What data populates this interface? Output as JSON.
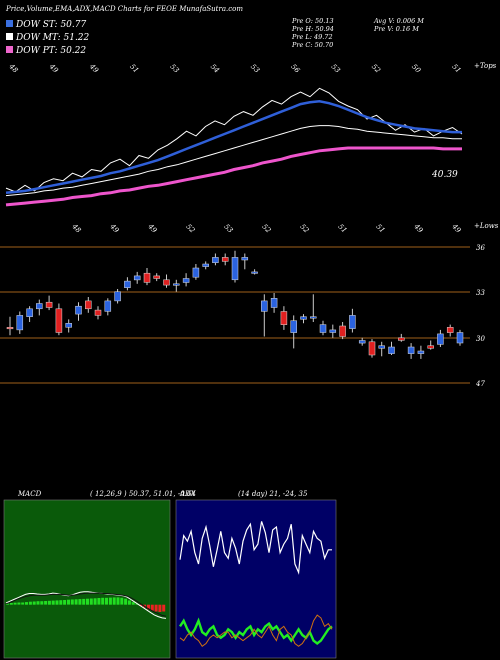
{
  "header": {
    "title": "Price,Volume,EMA,ADX,MACD Charts for FEOE MunafaSutra.com",
    "legend": [
      {
        "label": "DOW ST: 50.77",
        "color": "#3a6fe0"
      },
      {
        "label": "DOW MT: 51.22",
        "color": "#ffffff"
      },
      {
        "label": "DOW PT: 50.22",
        "color": "#ee66cc"
      }
    ],
    "stats_col1": [
      "Pre O: 50.13",
      "Pre H: 50.94",
      "Pre L: 49.72",
      "Pre C: 50.70"
    ],
    "stats_col2": [
      "Avg V: 0.006 M",
      "Pre V: 0.16 M"
    ]
  },
  "chart_data": [
    {
      "type": "line",
      "name": "price-ema",
      "tag_top": "+Tops",
      "last_value_label": "40.39",
      "top_labels": [
        "48",
        "49",
        "49",
        "51",
        "53",
        "54",
        "53",
        "56",
        "53",
        "52",
        "50",
        "51"
      ],
      "bottom_labels": [
        "48",
        "49",
        "49",
        "52",
        "53",
        "52",
        "52",
        "51",
        "51",
        "49",
        "49"
      ],
      "series": [
        {
          "color": "#ffffff",
          "values": [
            46.2,
            45.8,
            46.5,
            45.9,
            46.8,
            47.2,
            47.0,
            47.8,
            47.4,
            48.2,
            48.0,
            48.9,
            49.3,
            48.6,
            49.7,
            49.4,
            50.3,
            50.8,
            51.5,
            52.3,
            51.8,
            52.8,
            53.4,
            53.0,
            53.9,
            54.4,
            54.0,
            54.9,
            55.6,
            55.2,
            56.0,
            56.5,
            56.0,
            56.9,
            56.4,
            55.5,
            55.0,
            54.6,
            53.6,
            54.0,
            53.2,
            52.4,
            53.0,
            52.2,
            52.6,
            51.8,
            52.3,
            52.7,
            52.0
          ]
        },
        {
          "color": "#2f5fd8",
          "values": [
            45.7,
            45.8,
            45.9,
            46.1,
            46.3,
            46.5,
            46.7,
            46.9,
            47.1,
            47.3,
            47.5,
            47.8,
            48.0,
            48.3,
            48.6,
            48.9,
            49.2,
            49.6,
            50.0,
            50.4,
            50.8,
            51.2,
            51.6,
            52.0,
            52.4,
            52.8,
            53.2,
            53.6,
            54.0,
            54.4,
            54.8,
            55.2,
            55.4,
            55.5,
            55.3,
            55.0,
            54.6,
            54.2,
            53.8,
            53.5,
            53.2,
            53.0,
            52.8,
            52.6,
            52.5,
            52.4,
            52.3,
            52.2,
            52.2
          ]
        },
        {
          "color": "#ffffff",
          "values": [
            45.4,
            45.5,
            45.6,
            45.7,
            45.9,
            46.0,
            46.2,
            46.3,
            46.5,
            46.7,
            46.9,
            47.1,
            47.3,
            47.5,
            47.7,
            48.0,
            48.2,
            48.5,
            48.7,
            49.0,
            49.3,
            49.6,
            49.9,
            50.2,
            50.5,
            50.8,
            51.1,
            51.4,
            51.7,
            52.0,
            52.3,
            52.6,
            52.8,
            52.9,
            52.9,
            52.8,
            52.6,
            52.5,
            52.3,
            52.2,
            52.1,
            52.0,
            51.9,
            51.8,
            51.7,
            51.6,
            51.6,
            51.5,
            51.5
          ]
        },
        {
          "color": "#ee55cc",
          "values": [
            44.4,
            44.5,
            44.6,
            44.7,
            44.8,
            44.9,
            45.0,
            45.2,
            45.3,
            45.4,
            45.6,
            45.7,
            45.9,
            46.0,
            46.2,
            46.4,
            46.5,
            46.7,
            46.9,
            47.1,
            47.3,
            47.5,
            47.7,
            47.9,
            48.2,
            48.4,
            48.6,
            48.9,
            49.1,
            49.3,
            49.6,
            49.8,
            50.0,
            50.2,
            50.3,
            50.4,
            50.5,
            50.5,
            50.5,
            50.5,
            50.5,
            50.5,
            50.5,
            50.5,
            50.5,
            50.5,
            50.4,
            50.4,
            50.4
          ]
        }
      ],
      "ylim": [
        43,
        58
      ]
    },
    {
      "type": "candlestick",
      "name": "daily-candles",
      "tag_top": "+Lows",
      "level_labels": [
        "36",
        "33",
        "30",
        "47"
      ],
      "candles": [
        {
          "o": 31.0,
          "h": 31.8,
          "l": 30.4,
          "c": 30.9,
          "d": "down"
        },
        {
          "o": 30.8,
          "h": 32.2,
          "l": 30.5,
          "c": 31.9,
          "d": "up"
        },
        {
          "o": 31.8,
          "h": 32.6,
          "l": 31.4,
          "c": 32.4,
          "d": "up"
        },
        {
          "o": 32.4,
          "h": 33.1,
          "l": 31.9,
          "c": 32.8,
          "d": "up"
        },
        {
          "o": 32.9,
          "h": 33.4,
          "l": 32.3,
          "c": 32.5,
          "d": "down"
        },
        {
          "o": 32.4,
          "h": 32.8,
          "l": 30.4,
          "c": 30.6,
          "d": "down"
        },
        {
          "o": 31.0,
          "h": 31.6,
          "l": 30.6,
          "c": 31.3,
          "d": "up"
        },
        {
          "o": 32.0,
          "h": 32.9,
          "l": 31.5,
          "c": 32.6,
          "d": "up"
        },
        {
          "o": 33.0,
          "h": 33.3,
          "l": 32.1,
          "c": 32.4,
          "d": "down"
        },
        {
          "o": 32.3,
          "h": 32.6,
          "l": 31.6,
          "c": 31.9,
          "d": "down"
        },
        {
          "o": 32.2,
          "h": 33.2,
          "l": 31.9,
          "c": 33.0,
          "d": "up"
        },
        {
          "o": 33.0,
          "h": 33.9,
          "l": 32.8,
          "c": 33.7,
          "d": "up"
        },
        {
          "o": 34.0,
          "h": 34.8,
          "l": 33.8,
          "c": 34.5,
          "d": "up"
        },
        {
          "o": 34.6,
          "h": 35.2,
          "l": 34.3,
          "c": 34.9,
          "d": "up"
        },
        {
          "o": 35.1,
          "h": 35.5,
          "l": 34.2,
          "c": 34.4,
          "d": "down"
        },
        {
          "o": 34.9,
          "h": 35.1,
          "l": 34.5,
          "c": 34.7,
          "d": "down"
        },
        {
          "o": 34.6,
          "h": 35.0,
          "l": 34.0,
          "c": 34.2,
          "d": "down"
        },
        {
          "o": 34.2,
          "h": 34.6,
          "l": 33.7,
          "c": 34.3,
          "d": "up"
        },
        {
          "o": 34.4,
          "h": 35.1,
          "l": 34.1,
          "c": 34.7,
          "d": "up"
        },
        {
          "o": 34.8,
          "h": 35.8,
          "l": 34.6,
          "c": 35.5,
          "d": "up"
        },
        {
          "o": 35.6,
          "h": 36.0,
          "l": 35.4,
          "c": 35.8,
          "d": "up"
        },
        {
          "o": 35.9,
          "h": 36.6,
          "l": 35.7,
          "c": 36.3,
          "d": "up"
        },
        {
          "o": 36.3,
          "h": 36.6,
          "l": 35.7,
          "c": 36.0,
          "d": "down"
        },
        {
          "o": 36.3,
          "h": 36.8,
          "l": 34.4,
          "c": 34.6,
          "d": "up"
        },
        {
          "o": 36.3,
          "h": 36.6,
          "l": 35.4,
          "c": 36.1,
          "d": "up"
        },
        {
          "o": 35.2,
          "h": 35.4,
          "l": 35.0,
          "c": 35.1,
          "d": "up"
        },
        {
          "o": 33.0,
          "h": 33.5,
          "l": 30.3,
          "c": 32.2,
          "d": "up"
        },
        {
          "o": 33.2,
          "h": 33.6,
          "l": 32.1,
          "c": 32.5,
          "d": "up"
        },
        {
          "o": 32.2,
          "h": 32.6,
          "l": 30.8,
          "c": 31.2,
          "d": "down"
        },
        {
          "o": 30.6,
          "h": 31.9,
          "l": 29.4,
          "c": 31.5,
          "d": "up"
        },
        {
          "o": 31.8,
          "h": 32.0,
          "l": 31.3,
          "c": 31.6,
          "d": "up"
        },
        {
          "o": 31.8,
          "h": 33.5,
          "l": 31.4,
          "c": 31.8,
          "d": "up"
        },
        {
          "o": 31.2,
          "h": 31.5,
          "l": 30.4,
          "c": 30.6,
          "d": "up"
        },
        {
          "o": 30.8,
          "h": 31.2,
          "l": 30.2,
          "c": 30.6,
          "d": "up"
        },
        {
          "o": 31.1,
          "h": 31.4,
          "l": 30.1,
          "c": 30.3,
          "d": "down"
        },
        {
          "o": 30.9,
          "h": 32.4,
          "l": 30.6,
          "c": 31.9,
          "d": "up"
        },
        {
          "o": 30.0,
          "h": 30.2,
          "l": 29.6,
          "c": 29.8,
          "d": "up"
        },
        {
          "o": 29.9,
          "h": 30.1,
          "l": 28.7,
          "c": 28.9,
          "d": "down"
        },
        {
          "o": 29.6,
          "h": 29.9,
          "l": 28.8,
          "c": 29.4,
          "d": "up"
        },
        {
          "o": 29.5,
          "h": 29.9,
          "l": 28.9,
          "c": 29.0,
          "d": "up"
        },
        {
          "o": 30.2,
          "h": 30.5,
          "l": 29.9,
          "c": 30.0,
          "d": "down"
        },
        {
          "o": 29.0,
          "h": 29.8,
          "l": 28.6,
          "c": 29.5,
          "d": "up"
        },
        {
          "o": 29.0,
          "h": 29.6,
          "l": 28.6,
          "c": 29.2,
          "d": "up"
        },
        {
          "o": 29.6,
          "h": 30.0,
          "l": 29.3,
          "c": 29.4,
          "d": "down"
        },
        {
          "o": 29.7,
          "h": 30.8,
          "l": 29.5,
          "c": 30.5,
          "d": "up"
        },
        {
          "o": 30.6,
          "h": 31.2,
          "l": 30.3,
          "c": 31.0,
          "d": "down"
        },
        {
          "o": 29.8,
          "h": 30.8,
          "l": 29.6,
          "c": 30.6,
          "d": "up"
        }
      ],
      "ylim": [
        27,
        38
      ]
    },
    {
      "type": "bar",
      "name": "macd",
      "label": "MACD",
      "params": "( 12,26,9 ) 50.37, 51.01, -0.64",
      "bar_colors": {
        "positive": "#22dd22",
        "negative": "#ee2222"
      },
      "histogram": [
        0.3,
        0.4,
        0.45,
        0.5,
        0.5,
        0.6,
        0.7,
        0.75,
        0.8,
        0.8,
        0.85,
        0.9,
        0.95,
        1.0,
        1.05,
        1.1,
        1.15,
        1.2,
        1.25,
        1.3,
        1.35,
        1.4,
        1.45,
        1.5,
        1.55,
        1.6,
        1.6,
        1.65,
        1.7,
        1.7,
        1.6,
        1.4,
        1.0,
        0.6,
        0.2,
        -0.3,
        -0.7,
        -1.1,
        -1.4,
        -1.6,
        -1.7,
        -1.6
      ],
      "macd_line": [
        0.4,
        0.8,
        1.2,
        1.6,
        2.0,
        2.4,
        2.6,
        2.6,
        2.5,
        2.4,
        2.4,
        2.5,
        2.7,
        2.6,
        2.4,
        2.2,
        2.1,
        2.3,
        2.6,
        2.9,
        3.0,
        3.0,
        2.9,
        2.8,
        2.7,
        2.6,
        2.5,
        2.4,
        2.3,
        2.2,
        2.1,
        1.8,
        1.2,
        0.6,
        0.0,
        -0.6,
        -1.2,
        -1.8,
        -2.4,
        -2.8,
        -3.1,
        -3.2
      ],
      "signal_line": [
        0.2,
        0.5,
        0.9,
        1.3,
        1.6,
        1.9,
        2.1,
        2.2,
        2.2,
        2.2,
        2.2,
        2.3,
        2.4,
        2.4,
        2.4,
        2.3,
        2.2,
        2.2,
        2.3,
        2.5,
        2.6,
        2.7,
        2.7,
        2.7,
        2.7,
        2.6,
        2.6,
        2.5,
        2.4,
        2.3,
        2.2,
        2.0,
        1.6,
        1.1,
        0.5,
        -0.1,
        -0.7,
        -1.2,
        -1.7,
        -2.1,
        -2.5,
        -2.7
      ],
      "ylim": [
        -12,
        24
      ]
    },
    {
      "type": "line",
      "name": "adx",
      "label": "ADX",
      "params": "(14 day) 21,  -24,  35",
      "series": [
        {
          "color": "#ffffff",
          "values": [
            65,
            82,
            78,
            85,
            70,
            62,
            80,
            88,
            75,
            60,
            72,
            85,
            70,
            66,
            80,
            73,
            62,
            78,
            86,
            90,
            72,
            76,
            92,
            84,
            70,
            86,
            88,
            70,
            76,
            80,
            90,
            62,
            56,
            82,
            76,
            70,
            85,
            80,
            78,
            66,
            72,
            72
          ]
        },
        {
          "color": "#22ee22",
          "values": [
            18,
            22,
            16,
            12,
            16,
            22,
            14,
            12,
            16,
            18,
            12,
            10,
            12,
            16,
            14,
            10,
            14,
            12,
            16,
            18,
            12,
            16,
            14,
            18,
            20,
            16,
            18,
            14,
            10,
            12,
            8,
            12,
            16,
            12,
            10,
            14,
            8,
            6,
            8,
            12,
            16,
            18
          ]
        },
        {
          "color": "#d07010",
          "values": [
            10,
            8,
            12,
            14,
            10,
            8,
            4,
            6,
            10,
            12,
            10,
            12,
            14,
            14,
            10,
            12,
            10,
            8,
            10,
            12,
            16,
            12,
            10,
            14,
            18,
            12,
            8,
            16,
            18,
            14,
            12,
            6,
            4,
            6,
            10,
            14,
            22,
            26,
            24,
            18,
            20,
            16
          ]
        }
      ],
      "ylim": [
        0,
        100
      ]
    }
  ]
}
